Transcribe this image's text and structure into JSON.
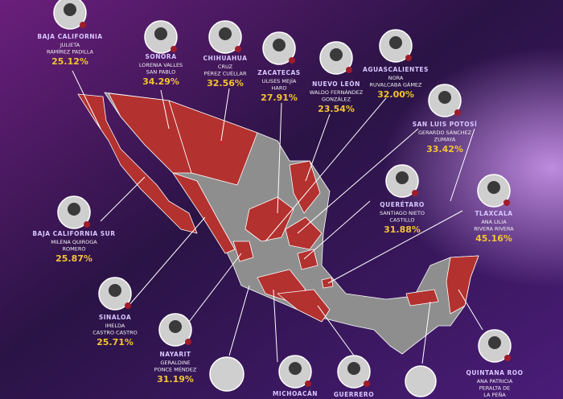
{
  "candidates": [
    {
      "state": "BAJA CALIFORNIA",
      "name": [
        "JULIETA",
        "RAMÍREZ PADILLA"
      ],
      "percent": "25.12%"
    },
    {
      "state": "SONORA",
      "name": [
        "LORENIA VALLES",
        "SAN PABLO"
      ],
      "percent": "34.29%"
    },
    {
      "state": "CHIHUAHUA",
      "name": [
        "CRUZ",
        "PÉREZ CUÉLLAR"
      ],
      "percent": "32.56%"
    },
    {
      "state": "ZACATECAS",
      "name": [
        "ULISES MEJÍA",
        "HARO"
      ],
      "percent": "27.91%"
    },
    {
      "state": "NUEVO LEÓN",
      "name": [
        "WALDO FERNÁNDEZ",
        "GONZÁLEZ"
      ],
      "percent": "23.54%"
    },
    {
      "state": "AGUASCALIENTES",
      "name": [
        "NORA",
        "RUVALCABA GÁMEZ"
      ],
      "percent": "32.00%"
    },
    {
      "state": "SAN LUIS POTOSÍ",
      "name": [
        "GERARDO SÁNCHEZ",
        "ZUMAYA"
      ],
      "percent": "33.42%"
    },
    {
      "state": "BAJA CALIFORNIA SUR",
      "name": [
        "MILENA QUIROGA",
        "ROMERO"
      ],
      "percent": "25.87%"
    },
    {
      "state": "QUERÉTARO",
      "name": [
        "SANTIAGO NIETO",
        "CASTILLO"
      ],
      "percent": "31.88%"
    },
    {
      "state": "TLAXCALA",
      "name": [
        "ANA LILIA",
        "RIVERA RIVERA"
      ],
      "percent": "45.16%"
    },
    {
      "state": "SINALOA",
      "name": [
        "IMELDA",
        "CASTRO CASTRO"
      ],
      "percent": "25.71%"
    },
    {
      "state": "NAYARIT",
      "name": [
        "GERALDINE",
        "PONCE MÉNDEZ"
      ],
      "percent": "31.19%"
    },
    {
      "state": "QUINTANA ROO",
      "name": [
        "ANA PATRICIA",
        "PERALTA DE",
        "LA PEÑA"
      ]
    },
    {
      "state": "MICHOACÁN",
      "name": []
    },
    {
      "state": "GUERRERO",
      "name": []
    }
  ]
}
